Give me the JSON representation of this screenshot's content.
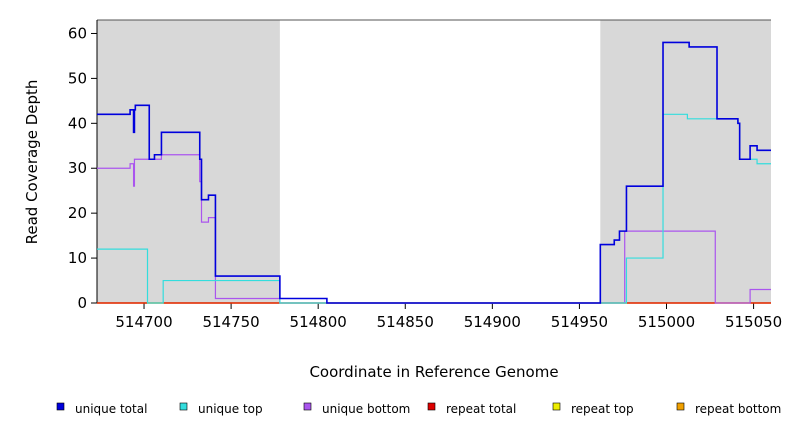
{
  "chart_data": {
    "type": "line",
    "step": true,
    "xlabel": "Coordinate in Reference Genome",
    "ylabel": "Read Coverage Depth",
    "xlim": [
      514673,
      515060
    ],
    "ylim": [
      0,
      63
    ],
    "xticks": [
      514700,
      514750,
      514800,
      514850,
      514900,
      514950,
      515000,
      515050
    ],
    "yticks": [
      0,
      10,
      20,
      30,
      40,
      50,
      60
    ],
    "shaded_regions": [
      [
        514673,
        514778
      ],
      [
        514962,
        515060
      ]
    ],
    "grid": false,
    "legend_position": "bottom",
    "series": [
      {
        "name": "unique total",
        "color": "#0000dd",
        "points": [
          [
            514673,
            42
          ],
          [
            514692,
            42
          ],
          [
            514692,
            43
          ],
          [
            514694,
            43
          ],
          [
            514694,
            38
          ],
          [
            514694.5,
            38
          ],
          [
            514694.5,
            43
          ],
          [
            514695,
            43
          ],
          [
            514695,
            44
          ],
          [
            514703,
            44
          ],
          [
            514703,
            32
          ],
          [
            514706,
            32
          ],
          [
            514706,
            33
          ],
          [
            514710,
            33
          ],
          [
            514710,
            38
          ],
          [
            514732,
            38
          ],
          [
            514732,
            32
          ],
          [
            514733,
            32
          ],
          [
            514733,
            23
          ],
          [
            514737,
            23
          ],
          [
            514737,
            24
          ],
          [
            514741,
            24
          ],
          [
            514741,
            6
          ],
          [
            514778,
            6
          ],
          [
            514778,
            1
          ],
          [
            514805,
            1
          ],
          [
            514805,
            0
          ],
          [
            514962,
            0
          ],
          [
            514962,
            13
          ],
          [
            514970,
            13
          ],
          [
            514970,
            14
          ],
          [
            514973,
            14
          ],
          [
            514973,
            16
          ],
          [
            514977,
            16
          ],
          [
            514977,
            26
          ],
          [
            514998,
            26
          ],
          [
            514998,
            58
          ],
          [
            515013,
            58
          ],
          [
            515013,
            57
          ],
          [
            515029,
            57
          ],
          [
            515029,
            41
          ],
          [
            515041,
            41
          ],
          [
            515041,
            40
          ],
          [
            515042,
            40
          ],
          [
            515042,
            32
          ],
          [
            515048,
            32
          ],
          [
            515048,
            35
          ],
          [
            515052,
            35
          ],
          [
            515052,
            34
          ],
          [
            515060,
            34
          ]
        ]
      },
      {
        "name": "unique top",
        "color": "#33dddd",
        "points": [
          [
            514673,
            12
          ],
          [
            514702,
            12
          ],
          [
            514702,
            0
          ],
          [
            514711,
            0
          ],
          [
            514711,
            5
          ],
          [
            514778,
            5
          ],
          [
            514778,
            0
          ],
          [
            514977,
            0
          ],
          [
            514977,
            10
          ],
          [
            514998,
            10
          ],
          [
            514998,
            42
          ],
          [
            515012,
            42
          ],
          [
            515012,
            41
          ],
          [
            515041,
            41
          ],
          [
            515041,
            40
          ],
          [
            515042,
            40
          ],
          [
            515042,
            32
          ],
          [
            515052,
            32
          ],
          [
            515052,
            31
          ],
          [
            515060,
            31
          ]
        ]
      },
      {
        "name": "unique bottom",
        "color": "#aa55ee",
        "points": [
          [
            514673,
            30
          ],
          [
            514692,
            30
          ],
          [
            514692,
            31
          ],
          [
            514694,
            31
          ],
          [
            514694,
            26
          ],
          [
            514694.5,
            26
          ],
          [
            514694.5,
            32
          ],
          [
            514710,
            32
          ],
          [
            514710,
            33
          ],
          [
            514732,
            33
          ],
          [
            514732,
            27
          ],
          [
            514733,
            27
          ],
          [
            514733,
            18
          ],
          [
            514737,
            18
          ],
          [
            514737,
            19
          ],
          [
            514741,
            19
          ],
          [
            514741,
            1
          ],
          [
            514778,
            1
          ],
          [
            514778,
            0
          ],
          [
            514962,
            0
          ],
          [
            514962,
            0
          ],
          [
            514976,
            0
          ],
          [
            514976,
            16
          ],
          [
            515028,
            16
          ],
          [
            515028,
            0
          ],
          [
            515048,
            0
          ],
          [
            515048,
            3
          ],
          [
            515060,
            3
          ]
        ]
      },
      {
        "name": "repeat total",
        "color": "#dd0000",
        "points": [
          [
            514673,
            0
          ],
          [
            515060,
            0
          ]
        ]
      },
      {
        "name": "repeat top",
        "color": "#eeee00",
        "points": [
          [
            514673,
            0
          ],
          [
            515060,
            0
          ]
        ]
      },
      {
        "name": "repeat bottom",
        "color": "#f0a000",
        "points": [
          [
            514673,
            0
          ],
          [
            515060,
            0
          ]
        ]
      }
    ]
  }
}
